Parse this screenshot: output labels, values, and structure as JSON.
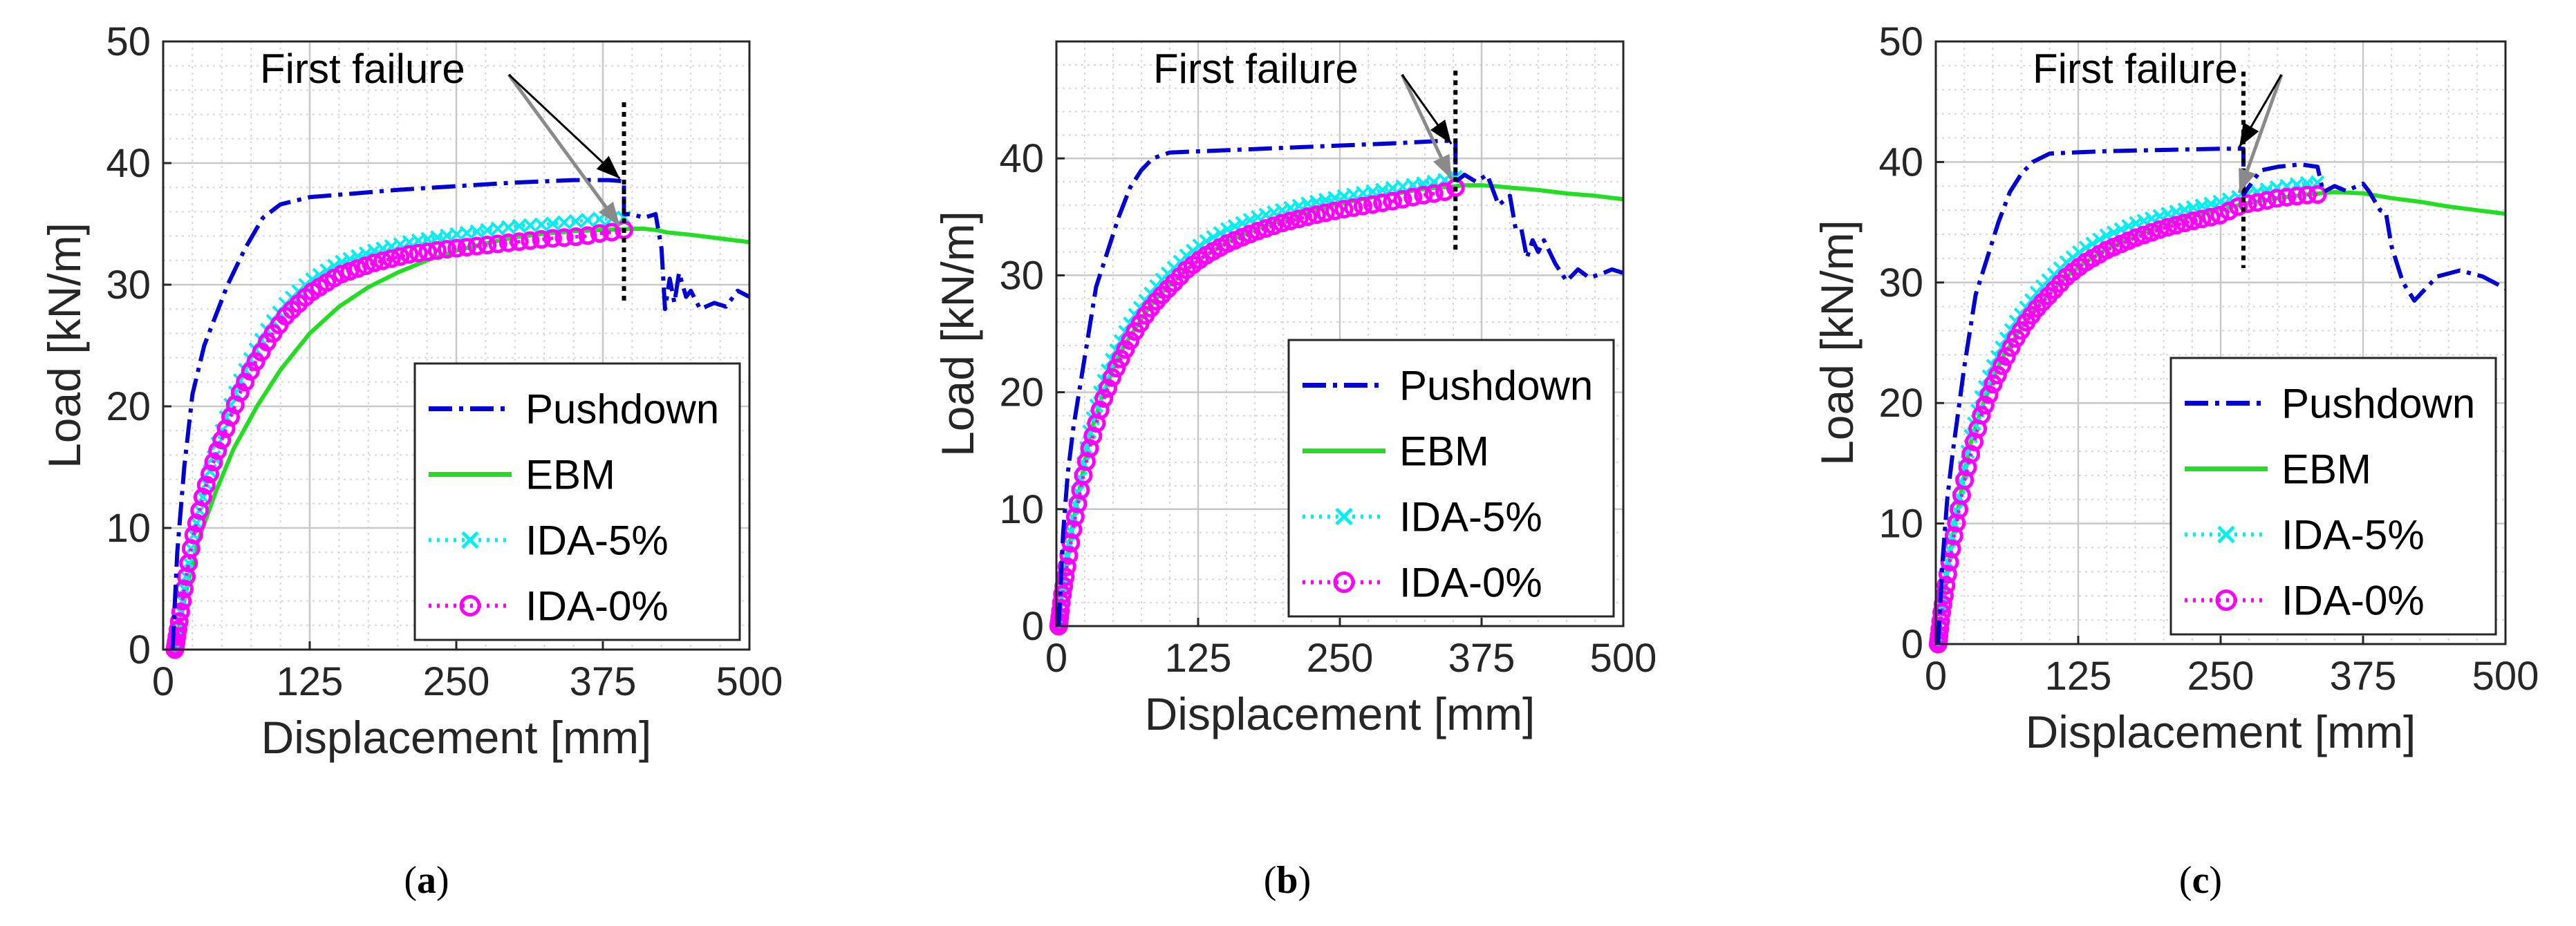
{
  "colors": {
    "pushdown": "#0000d6",
    "ebm": "#22dd22",
    "ida5": "#00f0f0",
    "ida0": "#ff00ff",
    "failure_line": "#000000",
    "arrow_black": "#000000",
    "arrow_gray": "#8a8a8a",
    "grid_major": "#c8c8c8",
    "grid_minor": "#d6d6d6"
  },
  "chart_data": [
    {
      "type": "line",
      "caption": {
        "open": "(",
        "letter": "a",
        "close": ")"
      },
      "xlabel": "Displacement [mm]",
      "ylabel": "Load [kN/m]",
      "xlim": [
        0,
        500
      ],
      "ylim": [
        0,
        50
      ],
      "xticks": [
        0,
        125,
        250,
        375,
        500
      ],
      "yticks": [
        0,
        10,
        20,
        30,
        40,
        50
      ],
      "grid": true,
      "legend_position": "bottom-right",
      "annotation": {
        "text": "First failure",
        "x": 393,
        "y_black": 38.5,
        "y_gray": 34.6
      },
      "failure_x": 393,
      "series": [
        {
          "name": "Pushdown",
          "style": "dash-dot",
          "x": [
            8,
            12,
            18,
            25,
            35,
            45,
            55,
            70,
            85,
            100,
            125,
            150,
            200,
            250,
            300,
            350,
            380,
            393,
            393,
            400,
            410,
            420,
            425,
            428,
            432,
            436,
            440,
            446,
            450,
            458,
            470,
            480,
            490,
            500
          ],
          "y": [
            0,
            8,
            15,
            21,
            25,
            27.5,
            30,
            33,
            35.5,
            36.6,
            37.2,
            37.4,
            37.8,
            38.1,
            38.4,
            38.6,
            38.6,
            38.5,
            35.8,
            35.8,
            35.5,
            35.8,
            33,
            28,
            30.5,
            28.5,
            31,
            29,
            29.5,
            28,
            28.5,
            28.2,
            29.5,
            29.0
          ]
        },
        {
          "name": "EBM",
          "style": "solid",
          "x": [
            10,
            20,
            30,
            45,
            60,
            80,
            100,
            125,
            150,
            175,
            200,
            225,
            250,
            275,
            300,
            325,
            350,
            375,
            400,
            410,
            420,
            430,
            450,
            475,
            500
          ],
          "y": [
            0,
            5,
            9,
            13,
            16.5,
            20,
            23,
            26,
            28.2,
            29.8,
            31,
            32,
            32.8,
            33.4,
            33.9,
            34.2,
            34.4,
            34.5,
            34.6,
            34.6,
            34.5,
            34.3,
            34.1,
            33.8,
            33.5
          ]
        },
        {
          "name": "IDA-5%",
          "style": "dotted-x",
          "x": [
            10,
            18,
            25,
            35,
            45,
            55,
            65,
            75,
            90,
            105,
            125,
            150,
            180,
            210,
            240,
            270,
            300,
            330,
            350,
            360,
            370,
            380,
            390,
            393
          ],
          "y": [
            0,
            5,
            9,
            13,
            16.5,
            19.5,
            22,
            24,
            26.5,
            28.5,
            30.3,
            31.8,
            32.8,
            33.5,
            34,
            34.4,
            34.8,
            35,
            35.2,
            35.3,
            35.4,
            35.4,
            35.5,
            35.5
          ]
        },
        {
          "name": "IDA-0%",
          "style": "dotted-o",
          "x": [
            10,
            18,
            25,
            35,
            45,
            55,
            65,
            75,
            90,
            105,
            125,
            150,
            180,
            210,
            240,
            270,
            300,
            330,
            360,
            370,
            380,
            390,
            393
          ],
          "y": [
            0,
            5,
            9,
            13,
            16,
            18.5,
            21,
            23,
            25.5,
            27.5,
            29.3,
            30.8,
            31.8,
            32.5,
            32.9,
            33.2,
            33.5,
            33.8,
            34.0,
            34.2,
            34.3,
            34.4,
            34.5
          ]
        }
      ]
    },
    {
      "type": "line",
      "caption": {
        "open": "(",
        "letter": "b",
        "close": ")"
      },
      "xlabel": "Displacement [mm]",
      "ylabel": "Load [kN/m]",
      "xlim": [
        0,
        500
      ],
      "ylim": [
        0,
        50
      ],
      "xticks": [
        0,
        125,
        250,
        375,
        500
      ],
      "yticks": [
        0,
        10,
        20,
        30,
        40
      ],
      "grid": true,
      "legend_position": "bottom-right",
      "annotation": {
        "text": "First failure",
        "x": 352,
        "y_black": 41.0,
        "y_gray": 38.0
      },
      "failure_x": 352,
      "series": [
        {
          "name": "Pushdown",
          "style": "dash-dot",
          "x": [
            2,
            6,
            10,
            15,
            20,
            25,
            30,
            35,
            45,
            55,
            65,
            75,
            85,
            100,
            125,
            150,
            200,
            250,
            300,
            340,
            352,
            352,
            360,
            370,
            380,
            390,
            400,
            405,
            410,
            415,
            420,
            425,
            430,
            440,
            450,
            460,
            470,
            480,
            490,
            500
          ],
          "y": [
            0,
            8,
            13,
            17,
            20,
            23,
            26,
            29,
            32,
            35,
            37.5,
            39,
            40,
            40.5,
            40.6,
            40.7,
            40.9,
            41.1,
            41.3,
            41.5,
            41.5,
            38.0,
            38.6,
            38.0,
            38.6,
            36,
            36.8,
            34,
            34,
            31.5,
            33,
            32,
            33,
            31,
            29.5,
            30.5,
            29.8,
            30.1,
            30.5,
            30.2
          ]
        },
        {
          "name": "EBM",
          "style": "solid",
          "x": [
            2,
            5,
            10,
            15,
            20,
            25,
            30,
            40,
            50,
            60,
            70,
            80,
            90,
            100,
            115,
            130,
            150,
            175,
            200,
            225,
            250,
            275,
            300,
            325,
            350,
            360,
            375,
            390,
            400,
            425,
            450,
            475,
            500
          ],
          "y": [
            0,
            3,
            6,
            9,
            11.5,
            14,
            16.5,
            19.5,
            22,
            24,
            25.5,
            27,
            28.2,
            29.2,
            30.5,
            31.6,
            32.8,
            33.9,
            34.8,
            35.5,
            36.1,
            36.6,
            37.0,
            37.4,
            37.6,
            37.7,
            37.7,
            37.6,
            37.5,
            37.3,
            37.0,
            36.8,
            36.5
          ]
        },
        {
          "name": "IDA-5%",
          "style": "dotted-x",
          "x": [
            2,
            5,
            10,
            15,
            20,
            25,
            30,
            40,
            50,
            60,
            70,
            80,
            90,
            100,
            115,
            130,
            150,
            175,
            200,
            225,
            250,
            275,
            300,
            320,
            340,
            345,
            350,
            352
          ],
          "y": [
            0,
            3,
            6.5,
            9.5,
            12,
            14.5,
            17,
            20.5,
            23,
            25,
            26.7,
            28,
            29.3,
            30.3,
            31.7,
            32.8,
            33.9,
            34.9,
            35.6,
            36.2,
            36.7,
            37.1,
            37.5,
            37.8,
            38.1,
            38.2,
            38.4,
            38.4
          ]
        },
        {
          "name": "IDA-0%",
          "style": "dotted-o",
          "x": [
            2,
            5,
            10,
            15,
            20,
            25,
            30,
            40,
            50,
            60,
            70,
            80,
            90,
            100,
            115,
            130,
            150,
            175,
            200,
            225,
            250,
            275,
            300,
            320,
            340,
            345,
            350,
            352
          ],
          "y": [
            0,
            2.5,
            5.5,
            8.5,
            11,
            13.5,
            15.5,
            19,
            21.5,
            23.5,
            25.3,
            26.8,
            28,
            29,
            30.5,
            31.6,
            32.7,
            33.7,
            34.5,
            35.1,
            35.6,
            36.0,
            36.4,
            36.8,
            37.1,
            37.2,
            37.4,
            37.5
          ]
        }
      ]
    },
    {
      "type": "line",
      "caption": {
        "open": "(",
        "letter": "c",
        "close": ")"
      },
      "xlabel": "Displacement [mm]",
      "ylabel": "Load [kN/m]",
      "xlim": [
        0,
        500
      ],
      "ylim": [
        0,
        50
      ],
      "xticks": [
        0,
        125,
        250,
        375,
        500
      ],
      "yticks": [
        0,
        10,
        20,
        30,
        40,
        50
      ],
      "grid": true,
      "legend_position": "bottom-right",
      "annotation": {
        "text": "First failure",
        "x": 270,
        "y_black": 41.0,
        "y_gray": 37.2
      },
      "failure_x": 270,
      "series": [
        {
          "name": "Pushdown",
          "style": "dash-dot",
          "x": [
            2,
            6,
            10,
            15,
            20,
            25,
            30,
            35,
            45,
            55,
            65,
            75,
            85,
            100,
            125,
            150,
            200,
            250,
            270,
            270,
            285,
            300,
            320,
            335,
            340,
            350,
            360,
            375,
            380,
            390,
            395,
            400,
            410,
            420,
            440,
            460,
            480,
            490,
            500
          ],
          "y": [
            0,
            7,
            12,
            16,
            19.5,
            23,
            26,
            29,
            32,
            35,
            37.5,
            39,
            40,
            40.7,
            40.8,
            40.9,
            41.0,
            41.1,
            41.1,
            37.3,
            39.3,
            39.6,
            39.8,
            39.6,
            37.5,
            38,
            37.6,
            38.2,
            37.6,
            36,
            35.8,
            33,
            30,
            28.5,
            30.5,
            31,
            30.5,
            30,
            29.5
          ]
        },
        {
          "name": "EBM",
          "style": "solid",
          "x": [
            2,
            5,
            10,
            15,
            20,
            25,
            30,
            40,
            50,
            60,
            70,
            80,
            90,
            100,
            115,
            130,
            150,
            175,
            200,
            225,
            250,
            275,
            300,
            325,
            350,
            375,
            400,
            425,
            450,
            475,
            500
          ],
          "y": [
            0,
            3,
            6,
            9,
            11.5,
            14,
            16.5,
            19.5,
            22,
            24,
            25.5,
            27,
            28.2,
            29.2,
            30.5,
            31.6,
            32.8,
            33.9,
            34.8,
            35.5,
            36.1,
            36.6,
            37.0,
            37.3,
            37.5,
            37.4,
            37.0,
            36.7,
            36.3,
            36.0,
            35.7
          ]
        },
        {
          "name": "IDA-5%",
          "style": "dotted-x",
          "x": [
            2,
            5,
            10,
            15,
            20,
            25,
            30,
            40,
            50,
            60,
            70,
            80,
            90,
            100,
            115,
            130,
            150,
            175,
            200,
            225,
            250,
            270,
            285,
            300,
            315,
            330,
            335
          ],
          "y": [
            0,
            3,
            6.5,
            9.5,
            12,
            14.5,
            17,
            20.5,
            23,
            25,
            26.7,
            28,
            29.3,
            30.3,
            31.7,
            32.8,
            33.9,
            34.9,
            35.6,
            36.2,
            36.7,
            37.2,
            37.6,
            37.9,
            38.1,
            38.3,
            38.3
          ]
        },
        {
          "name": "IDA-0%",
          "style": "dotted-o",
          "x": [
            2,
            5,
            10,
            15,
            20,
            25,
            30,
            40,
            50,
            60,
            70,
            80,
            90,
            100,
            115,
            130,
            150,
            175,
            200,
            225,
            250,
            270,
            280,
            290,
            300,
            310,
            320,
            330,
            335
          ],
          "y": [
            0,
            2.5,
            5.5,
            8.5,
            11,
            13.5,
            15.5,
            19,
            21.5,
            23.5,
            25.3,
            26.8,
            28,
            29,
            30.5,
            31.6,
            32.7,
            33.7,
            34.5,
            35.1,
            35.6,
            36.5,
            36.6,
            36.8,
            37.0,
            37.1,
            37.2,
            37.3,
            37.3
          ]
        }
      ]
    }
  ]
}
